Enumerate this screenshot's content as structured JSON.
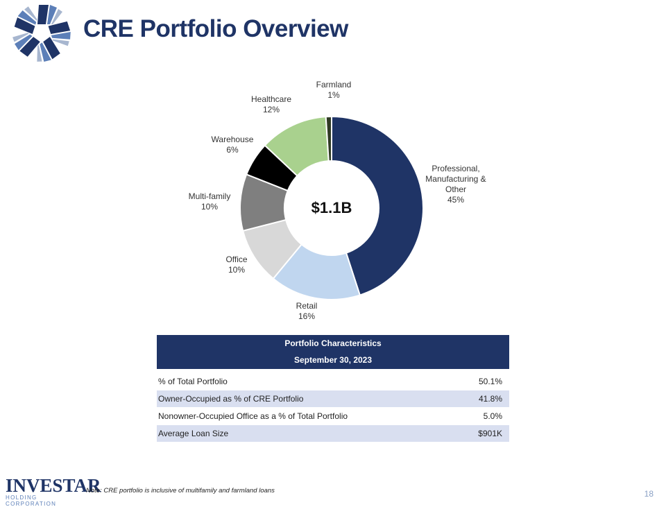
{
  "header": {
    "title": "CRE Portfolio Overview"
  },
  "colors": {
    "navy": "#1f3466",
    "light_blue": "#c0d6ef",
    "light_gray": "#d8d8d8",
    "mid_gray": "#7f7f7f",
    "black": "#000000",
    "green": "#a9d18e",
    "dark_olive": "#2f3a24"
  },
  "chart_data": {
    "type": "pie",
    "style": "donut",
    "center_label": "$1.1B",
    "slices": [
      {
        "label": [
          "Professional,",
          "Manufacturing &",
          "Other"
        ],
        "value": 45,
        "display": "45%",
        "color": "#1f3466"
      },
      {
        "label": [
          "Retail"
        ],
        "value": 16,
        "display": "16%",
        "color": "#c0d6ef"
      },
      {
        "label": [
          "Office"
        ],
        "value": 10,
        "display": "10%",
        "color": "#d8d8d8"
      },
      {
        "label": [
          "Multi-family"
        ],
        "value": 10,
        "display": "10%",
        "color": "#7f7f7f"
      },
      {
        "label": [
          "Warehouse"
        ],
        "value": 6,
        "display": "6%",
        "color": "#000000"
      },
      {
        "label": [
          "Healthcare"
        ],
        "value": 12,
        "display": "12%",
        "color": "#a9d18e"
      },
      {
        "label": [
          "Farmland"
        ],
        "value": 1,
        "display": "1%",
        "color": "#2f3a24"
      }
    ]
  },
  "table": {
    "title": "Portfolio Characteristics",
    "subtitle": "September 30, 2023",
    "rows": [
      {
        "label": "% of Total Portfolio",
        "value": "50.1%"
      },
      {
        "label": "Owner-Occupied as % of CRE Portfolio",
        "value": "41.8%"
      },
      {
        "label": "Nonowner-Occupied Office as a % of Total Portfolio",
        "value": "5.0%"
      },
      {
        "label": "Average Loan Size",
        "value": "$901K"
      }
    ]
  },
  "footer": {
    "brand_name": "INVESTAR",
    "brand_sub": "HOLDING CORPORATION",
    "note": "Note: CRE portfolio is inclusive of multifamily and farmland loans",
    "page_number": "18"
  }
}
